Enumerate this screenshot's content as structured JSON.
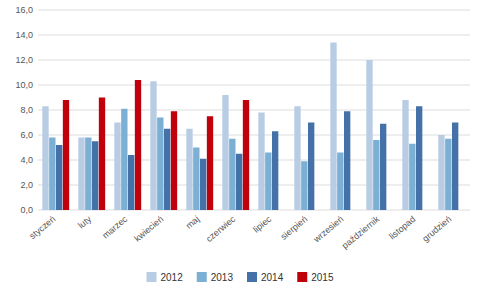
{
  "chart_data": {
    "type": "bar",
    "categories": [
      "styczeń",
      "luty",
      "marzec",
      "kwiecień",
      "maj",
      "czerwiec",
      "lipiec",
      "sierpień",
      "wrzesień",
      "październik",
      "listopad",
      "grudzień"
    ],
    "series": [
      {
        "name": "2012",
        "color": "#b8cce4",
        "values": [
          8.3,
          5.8,
          7.0,
          10.3,
          6.5,
          9.2,
          7.8,
          8.3,
          13.4,
          12.0,
          8.8,
          6.0
        ]
      },
      {
        "name": "2013",
        "color": "#7bafd4",
        "values": [
          5.8,
          5.8,
          8.1,
          7.4,
          5.0,
          5.7,
          4.6,
          3.9,
          4.6,
          5.6,
          5.3,
          5.7
        ]
      },
      {
        "name": "2014",
        "color": "#4472a8",
        "values": [
          5.2,
          5.5,
          4.4,
          6.5,
          4.1,
          4.5,
          6.3,
          7.0,
          7.9,
          6.9,
          8.3,
          7.0
        ]
      },
      {
        "name": "2015",
        "color": "#c0000b",
        "values": [
          8.8,
          9.0,
          10.4,
          7.9,
          7.5,
          8.8,
          null,
          null,
          null,
          null,
          null,
          null
        ]
      }
    ],
    "ylim": [
      0,
      16
    ],
    "yticks": [
      {
        "value": 0,
        "label": "0,0"
      },
      {
        "value": 2,
        "label": "2,0"
      },
      {
        "value": 4,
        "label": "4,0"
      },
      {
        "value": 6,
        "label": "6,0"
      },
      {
        "value": 8,
        "label": "8,0"
      },
      {
        "value": 10,
        "label": "10,0"
      },
      {
        "value": 12,
        "label": "12,0"
      },
      {
        "value": 14,
        "label": "14,0"
      },
      {
        "value": 16,
        "label": "16,0"
      }
    ],
    "grid": true,
    "legend": "bottom"
  }
}
